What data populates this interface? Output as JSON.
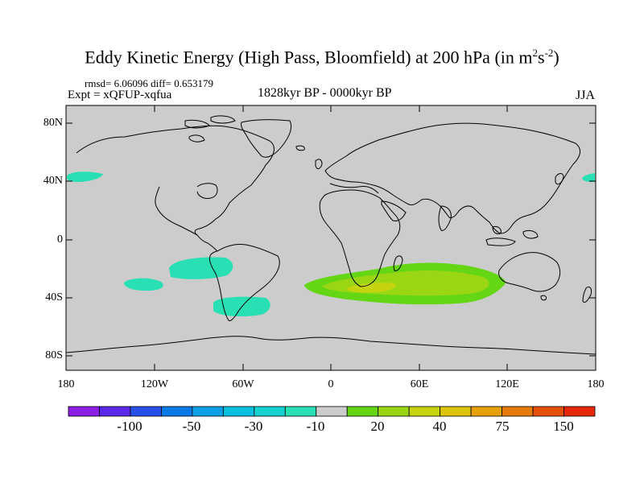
{
  "header": {
    "title_main": "Eddy Kinetic Energy (High Pass, Bloomfield) at 200 hPa (in m",
    "title_sup1": "2",
    "title_mid": "s",
    "title_sup2": "-2",
    "title_end": ")",
    "rmsd_text": "rmsd= 6.06096 diff= 0.653179",
    "expt_text": "Expt = xQFUP-xqfua",
    "period_text": "1828kyr BP - 0000kyr BP",
    "season_text": "JJA"
  },
  "axes": {
    "y_labels": [
      "80N",
      "40N",
      "0",
      "40S",
      "80S"
    ],
    "x_labels": [
      "180",
      "120W",
      "60W",
      "0",
      "60E",
      "120E",
      "180"
    ]
  },
  "colorbar": {
    "colors": [
      "#8c1ee6",
      "#5a28e6",
      "#2850e6",
      "#0a7ae6",
      "#0aa0e6",
      "#0ac0e0",
      "#14d2d0",
      "#28e0b4",
      "#cccccc",
      "#64d614",
      "#9ad614",
      "#c6d410",
      "#dcc40a",
      "#e6a00a",
      "#e67a0a",
      "#e6500a",
      "#e6280a"
    ],
    "labels": [
      "-100",
      "-50",
      "-30",
      "-10",
      "20",
      "40",
      "75",
      "150"
    ]
  },
  "map_data": {
    "background_color": "#cccccc",
    "features": [
      {
        "name": "north-pacific-positive-west",
        "color": "#28e0b4"
      },
      {
        "name": "north-pacific-positive-east",
        "color": "#28e0b4"
      },
      {
        "name": "south-pacific-anomaly-1",
        "color": "#28e0b4"
      },
      {
        "name": "south-pacific-anomaly-2",
        "color": "#28e0b4"
      },
      {
        "name": "south-america-anomaly",
        "color": "#28e0b4"
      },
      {
        "name": "south-indian-ocean-anomaly",
        "colors": [
          "#64d614",
          "#9ad614",
          "#c6d410"
        ]
      }
    ]
  }
}
